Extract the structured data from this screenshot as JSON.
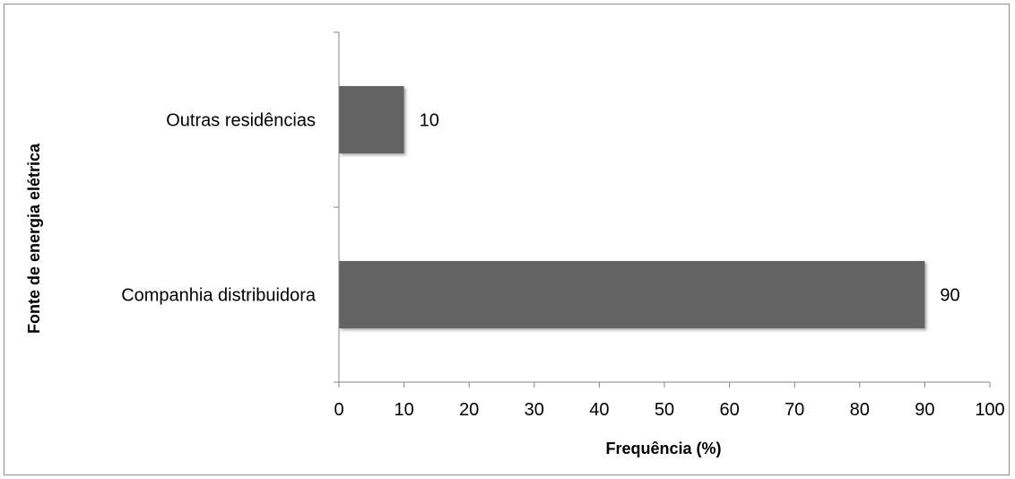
{
  "chart_data": {
    "type": "bar",
    "orientation": "horizontal",
    "categories": [
      "Outras residências",
      "Companhia distribuidora"
    ],
    "values": [
      10,
      90
    ],
    "data_labels": [
      "10",
      "90"
    ],
    "xlabel": "Frequência (%)",
    "ylabel": "Fonte de energia elétrica",
    "xlim": [
      0,
      100
    ],
    "xticks": [
      "0",
      "10",
      "20",
      "30",
      "40",
      "50",
      "60",
      "70",
      "80",
      "90",
      "100"
    ],
    "grid": false,
    "legend": "none",
    "bar_color": "#646464",
    "axis_color": "#868686"
  }
}
